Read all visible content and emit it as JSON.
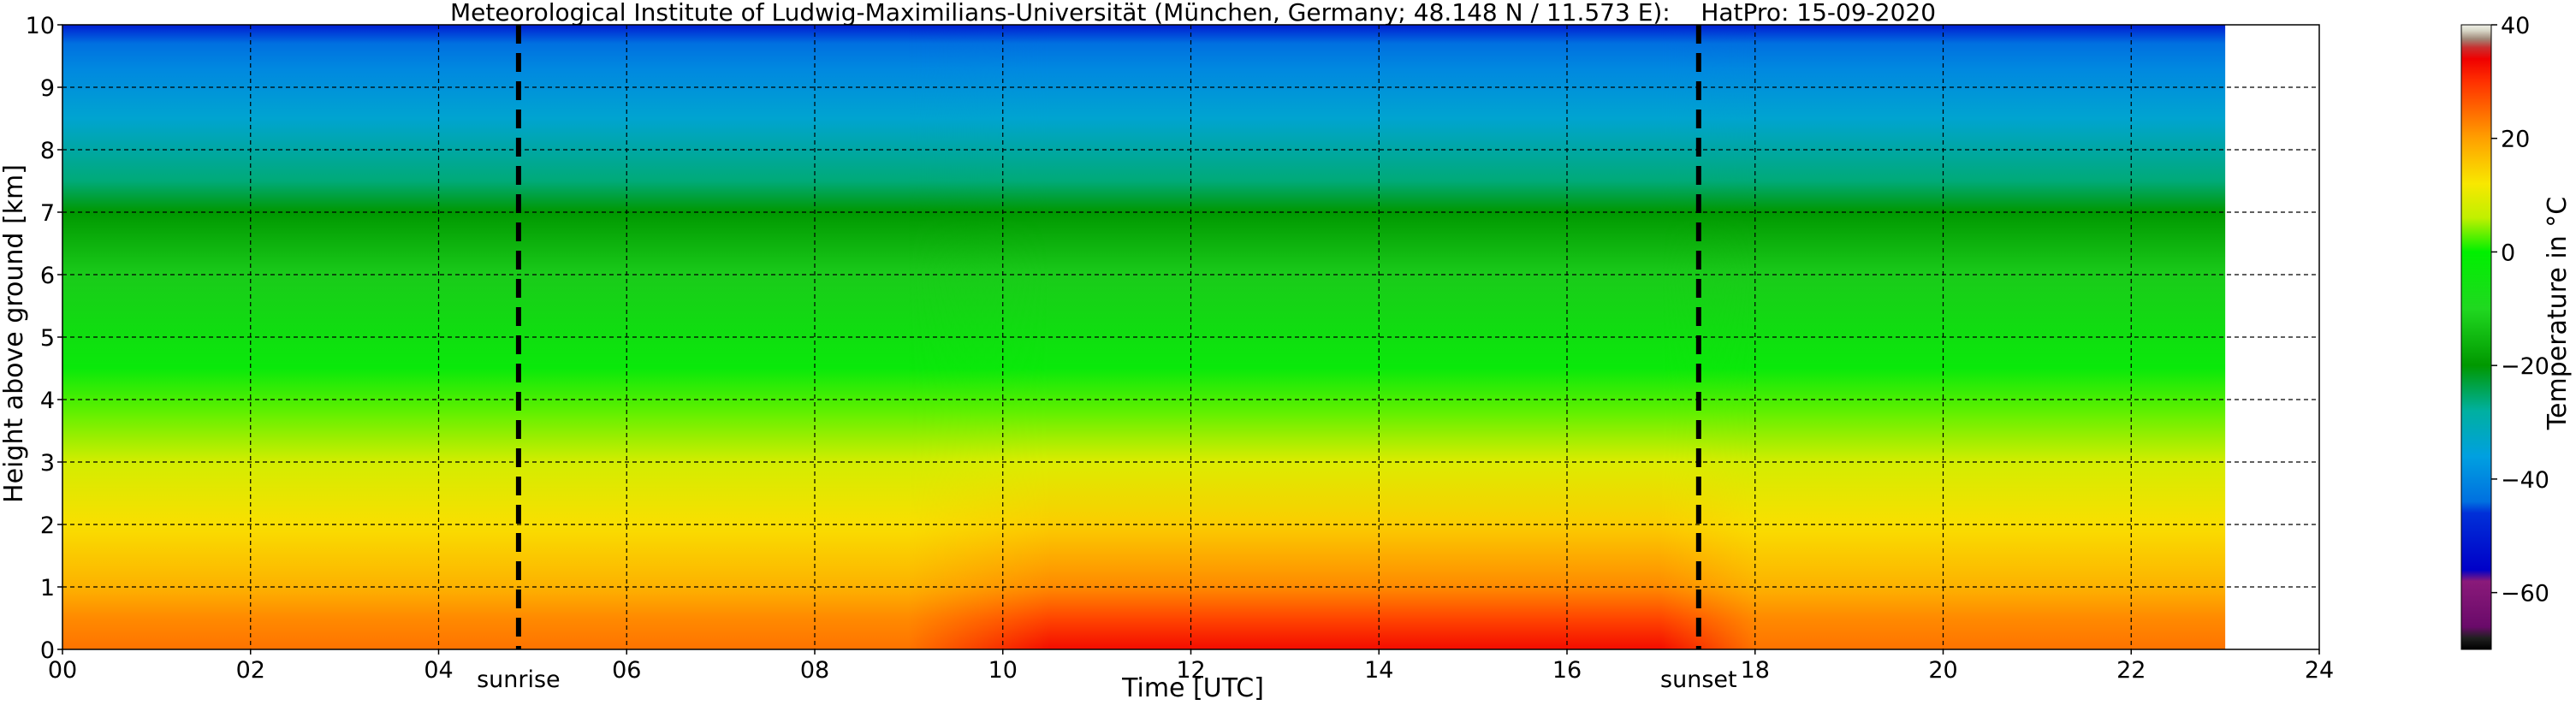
{
  "chart_data": {
    "type": "heatmap",
    "title": "Meteorological Institute of Ludwig-Maximilians-Universität (München, Germany; 48.148 N / 11.573 E):    HatPro: 15-09-2020",
    "xlabel": "Time [UTC]",
    "ylabel": "Height above ground [km]",
    "xlim": [
      0,
      24
    ],
    "ylim": [
      0,
      10
    ],
    "x_ticks": [
      "00",
      "02",
      "04",
      "06",
      "08",
      "10",
      "12",
      "14",
      "16",
      "18",
      "20",
      "22",
      "24"
    ],
    "y_ticks": [
      "0",
      "1",
      "2",
      "3",
      "4",
      "5",
      "6",
      "7",
      "8",
      "9",
      "10"
    ],
    "grid": true,
    "data_end_time": 23.0,
    "annotations": [
      {
        "label": "sunrise",
        "time": 4.85
      },
      {
        "label": "sunset",
        "time": 17.4
      }
    ],
    "colorbar": {
      "label": "Temperature in °C",
      "range": [
        -70,
        40
      ],
      "ticks": [
        "−60",
        "−40",
        "−20",
        "0",
        "20",
        "40"
      ],
      "colors": [
        {
          "value": -70,
          "color": "#000000"
        },
        {
          "value": -68,
          "color": "#202020"
        },
        {
          "value": -66,
          "color": "#6a0a6a"
        },
        {
          "value": -58,
          "color": "#8a1a7a"
        },
        {
          "value": -56,
          "color": "#0000c8"
        },
        {
          "value": -46,
          "color": "#0030d8"
        },
        {
          "value": -44,
          "color": "#0070e0"
        },
        {
          "value": -36,
          "color": "#00a0e0"
        },
        {
          "value": -28,
          "color": "#00b0a0"
        },
        {
          "value": -20,
          "color": "#009800"
        },
        {
          "value": -10,
          "color": "#20d820"
        },
        {
          "value": 0,
          "color": "#00f000"
        },
        {
          "value": 6,
          "color": "#c0f000"
        },
        {
          "value": 12,
          "color": "#f8e800"
        },
        {
          "value": 20,
          "color": "#ffa000"
        },
        {
          "value": 30,
          "color": "#ff3000"
        },
        {
          "value": 34,
          "color": "#f00000"
        },
        {
          "value": 36,
          "color": "#c83030"
        },
        {
          "value": 37.5,
          "color": "#a08878"
        },
        {
          "value": 39,
          "color": "#d8d8c8"
        },
        {
          "value": 40,
          "color": "#f0f0e8"
        }
      ]
    },
    "profile_morning": [
      {
        "height_km": 0.0,
        "temp_c": 24
      },
      {
        "height_km": 0.5,
        "temp_c": 22
      },
      {
        "height_km": 1.0,
        "temp_c": 18
      },
      {
        "height_km": 2.0,
        "temp_c": 13
      },
      {
        "height_km": 3.0,
        "temp_c": 8
      },
      {
        "height_km": 3.8,
        "temp_c": 3
      },
      {
        "height_km": 4.5,
        "temp_c": -3
      },
      {
        "height_km": 6.0,
        "temp_c": -12
      },
      {
        "height_km": 7.0,
        "temp_c": -20
      },
      {
        "height_km": 7.5,
        "temp_c": -26
      },
      {
        "height_km": 8.5,
        "temp_c": -34
      },
      {
        "height_km": 9.3,
        "temp_c": -40
      },
      {
        "height_km": 9.7,
        "temp_c": -44
      },
      {
        "height_km": 10.0,
        "temp_c": -50
      }
    ],
    "profile_afternoon": [
      {
        "height_km": 0.0,
        "temp_c": 33
      },
      {
        "height_km": 0.5,
        "temp_c": 28
      },
      {
        "height_km": 1.0,
        "temp_c": 22
      },
      {
        "height_km": 2.0,
        "temp_c": 15
      },
      {
        "height_km": 3.0,
        "temp_c": 9
      },
      {
        "height_km": 3.8,
        "temp_c": 3
      },
      {
        "height_km": 4.5,
        "temp_c": -3
      },
      {
        "height_km": 6.0,
        "temp_c": -12
      },
      {
        "height_km": 7.0,
        "temp_c": -20
      },
      {
        "height_km": 7.5,
        "temp_c": -26
      },
      {
        "height_km": 8.5,
        "temp_c": -34
      },
      {
        "height_km": 9.3,
        "temp_c": -40
      },
      {
        "height_km": 9.7,
        "temp_c": -44
      },
      {
        "height_km": 10.0,
        "temp_c": -50
      }
    ]
  }
}
